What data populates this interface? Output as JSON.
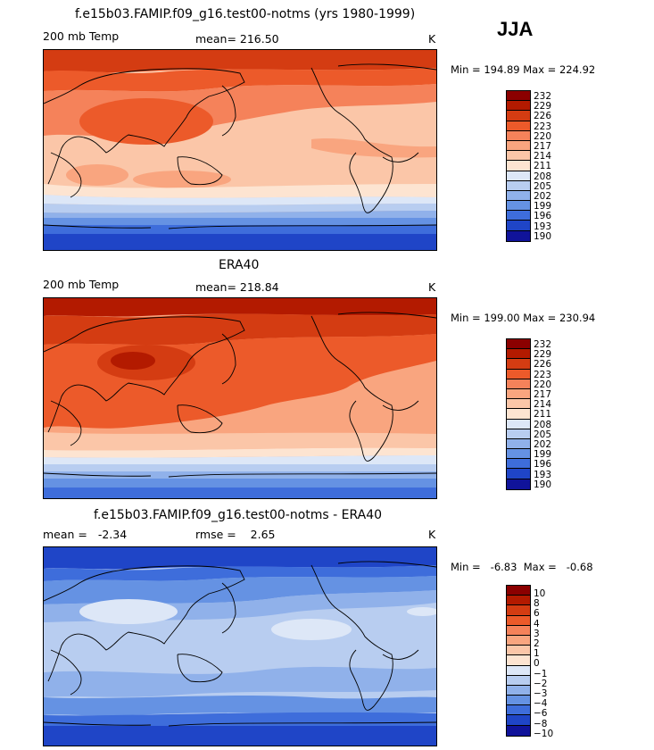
{
  "season": "JJA",
  "panels": [
    {
      "title": "f.e15b03.FAMIP.f09_g16.test00-notms (yrs 1980-1999)",
      "variable": "200 mb Temp",
      "mean_text": "mean= 216.50",
      "units": "K",
      "minmax": "Min = 194.89  Max = 224.92",
      "colorbar_labels": [
        "232",
        "229",
        "226",
        "223",
        "220",
        "217",
        "214",
        "211",
        "208",
        "205",
        "202",
        "199",
        "196",
        "193",
        "190"
      ]
    },
    {
      "title": "ERA40",
      "variable": "200 mb Temp",
      "mean_text": "mean= 218.84",
      "units": "K",
      "minmax": "Min = 199.00  Max = 230.94",
      "colorbar_labels": [
        "232",
        "229",
        "226",
        "223",
        "220",
        "217",
        "214",
        "211",
        "208",
        "205",
        "202",
        "199",
        "196",
        "193",
        "190"
      ]
    },
    {
      "title": "f.e15b03.FAMIP.f09_g16.test00-notms - ERA40",
      "mean_text": "mean =   -2.34",
      "rmse_text": "rmse =    2.65",
      "units": "K",
      "minmax": "Min =   -6.83  Max =   -0.68",
      "colorbar_labels": [
        "10",
        "8",
        "6",
        "4",
        "3",
        "2",
        "1",
        "0",
        "−1",
        "−2",
        "−3",
        "−4",
        "−6",
        "−8",
        "−10"
      ]
    }
  ],
  "colors": {
    "scale": [
      "#8b0000",
      "#b31a00",
      "#d43c12",
      "#ec5a2a",
      "#f5825a",
      "#f9a57f",
      "#fbc6a8",
      "#fde4d1",
      "#dde7f7",
      "#b8cdf0",
      "#90b1ea",
      "#6592e3",
      "#3e6ddb",
      "#1f45c7",
      "#10139a"
    ]
  }
}
